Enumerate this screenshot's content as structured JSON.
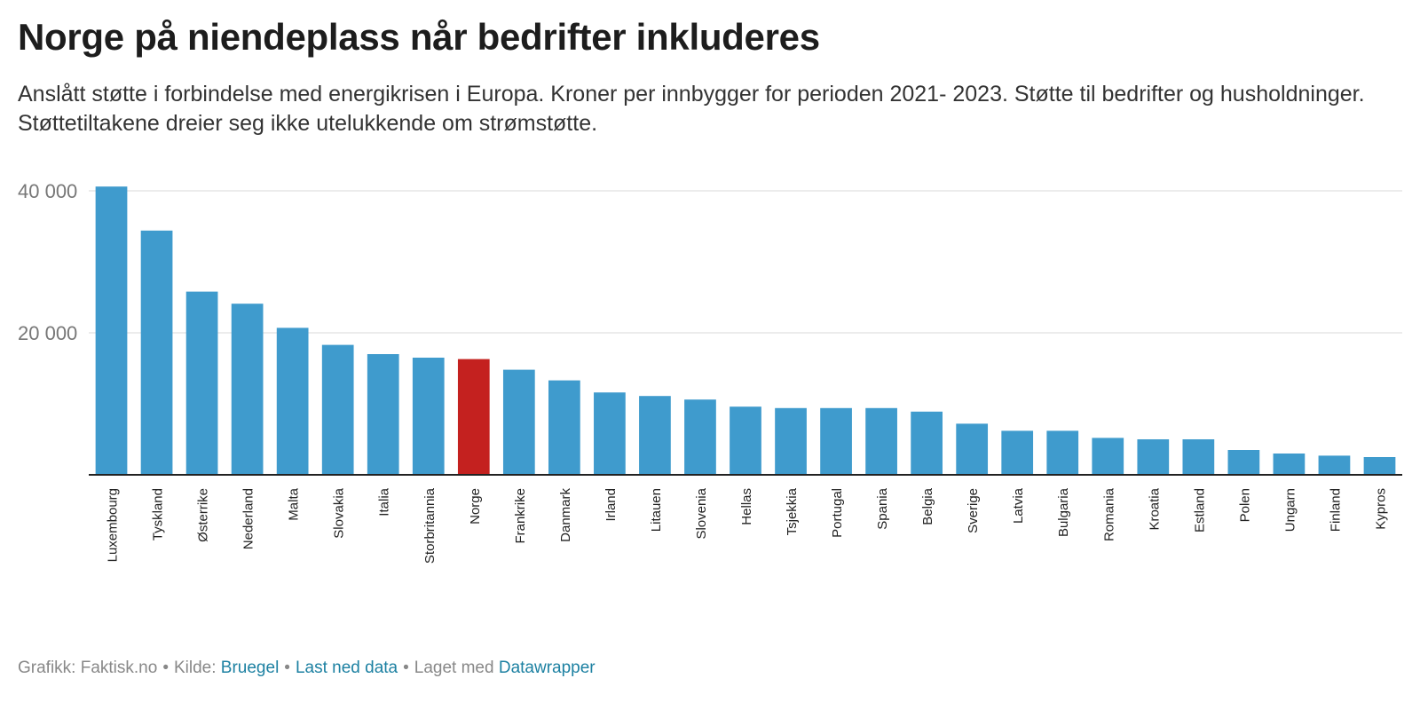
{
  "title": "Norge på niendeplass når bedrifter inkluderes",
  "subtitle": "Anslått støtte i forbindelse med energikrisen i Europa. Kroner per innbygger for perioden 2021- 2023. Støtte til bedrifter og husholdninger. Støttetiltakene dreier seg ikke utelukkende om strømstøtte.",
  "footer": {
    "credit": "Grafikk: Faktisk.no",
    "source_prefix": "Kilde:",
    "source_link": "Bruegel",
    "download_link": "Last ned data",
    "made_with_prefix": "Laget med",
    "made_with_link": "Datawrapper"
  },
  "colors": {
    "bar": "#3f9bcd",
    "highlight": "#c4211f",
    "grid": "#d9d9d9",
    "axis": "#222222",
    "tick_text": "#777777",
    "link": "#1d81a2"
  },
  "chart_data": {
    "type": "bar",
    "title": "Norge på niendeplass når bedrifter inkluderes",
    "xlabel": "",
    "ylabel": "",
    "ylim": [
      0,
      40000
    ],
    "yticks": [
      {
        "value": 20000,
        "label": "20 000"
      },
      {
        "value": 40000,
        "label": "40 000"
      }
    ],
    "grid": true,
    "highlight": "Norge",
    "categories": [
      "Luxembourg",
      "Tyskland",
      "Østerrike",
      "Nederland",
      "Malta",
      "Slovakia",
      "Italia",
      "Storbritannia",
      "Norge",
      "Frankrike",
      "Danmark",
      "Irland",
      "Litauen",
      "Slovenia",
      "Hellas",
      "Tsjekkia",
      "Portugal",
      "Spania",
      "Belgia",
      "Sverige",
      "Latvia",
      "Bulgaria",
      "Romania",
      "Kroatia",
      "Estland",
      "Polen",
      "Ungarn",
      "Finland",
      "Kypros"
    ],
    "values": [
      40600,
      34400,
      25800,
      24100,
      20700,
      18300,
      17000,
      16500,
      16300,
      14800,
      13300,
      11600,
      11100,
      10600,
      9600,
      9400,
      9400,
      9400,
      8900,
      7200,
      6200,
      6200,
      5200,
      5000,
      5000,
      3500,
      3000,
      2700,
      2500
    ]
  }
}
